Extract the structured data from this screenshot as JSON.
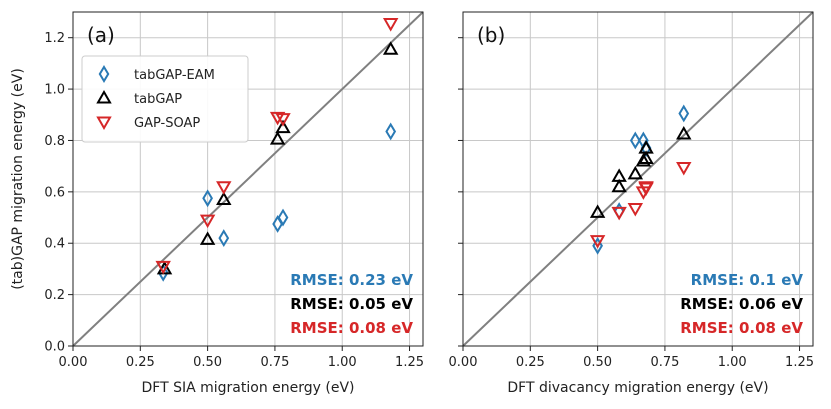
{
  "colors": {
    "tabgap_eam": "#2a7ab5",
    "tabgap": "#000000",
    "gap_soap": "#d62728",
    "grid": "#c8c8c8",
    "diag": "#808080"
  },
  "legend": {
    "entries": [
      "tabGAP-EAM",
      "tabGAP",
      "GAP-SOAP"
    ]
  },
  "chart_data": [
    {
      "type": "scatter",
      "panel_label": "(a)",
      "xlabel": "DFT SIA migration energy (eV)",
      "ylabel": "(tab)GAP migration energy (eV)",
      "xlim": [
        0,
        1.3
      ],
      "ylim": [
        0,
        1.3
      ],
      "xticks": [
        0,
        0.25,
        0.5,
        0.75,
        1.0,
        1.25
      ],
      "xtick_labels": [
        "0.00",
        "0.25",
        "0.50",
        "0.75",
        "1.00",
        "1.25"
      ],
      "yticks": [
        0,
        0.2,
        0.4,
        0.6,
        0.8,
        1.0,
        1.2
      ],
      "ytick_labels": [
        "0.0",
        "0.2",
        "0.4",
        "0.6",
        "0.8",
        "1.0",
        "1.2"
      ],
      "grid": true,
      "legend": "upper-left",
      "series": [
        {
          "name": "tabGAP-EAM",
          "marker": "diamond",
          "x": [
            0.335,
            0.5,
            0.56,
            0.76,
            0.78,
            1.18
          ],
          "y": [
            0.285,
            0.575,
            0.42,
            0.475,
            0.5,
            0.835
          ]
        },
        {
          "name": "tabGAP",
          "marker": "triangle-up",
          "x": [
            0.34,
            0.5,
            0.56,
            0.76,
            0.78,
            1.18
          ],
          "y": [
            0.3,
            0.415,
            0.57,
            0.805,
            0.85,
            1.155
          ]
        },
        {
          "name": "GAP-SOAP",
          "marker": "triangle-down",
          "x": [
            0.335,
            0.5,
            0.56,
            0.76,
            0.78,
            1.18
          ],
          "y": [
            0.31,
            0.49,
            0.62,
            0.89,
            0.885,
            1.255
          ]
        }
      ],
      "rmse": [
        "RMSE: 0.23 eV",
        "RMSE: 0.05 eV",
        "RMSE: 0.08 eV"
      ]
    },
    {
      "type": "scatter",
      "panel_label": "(b)",
      "xlabel": "DFT divacancy migration energy (eV)",
      "ylabel": "",
      "xlim": [
        0,
        1.3
      ],
      "ylim": [
        0,
        1.3
      ],
      "xticks": [
        0,
        0.25,
        0.5,
        0.75,
        1.0,
        1.25
      ],
      "xtick_labels": [
        "0.00",
        "0.25",
        "0.50",
        "0.75",
        "1.00",
        "1.25"
      ],
      "yticks": [
        0,
        0.2,
        0.4,
        0.6,
        0.8,
        1.0,
        1.2
      ],
      "ytick_labels": [],
      "grid": true,
      "legend": "none",
      "series": [
        {
          "name": "tabGAP-EAM",
          "marker": "diamond",
          "x": [
            0.5,
            0.58,
            0.64,
            0.67,
            0.68,
            0.82
          ],
          "y": [
            0.39,
            0.525,
            0.8,
            0.8,
            0.77,
            0.905
          ]
        },
        {
          "name": "tabGAP",
          "marker": "triangle-up",
          "x": [
            0.5,
            0.58,
            0.58,
            0.64,
            0.67,
            0.68,
            0.68,
            0.82
          ],
          "y": [
            0.52,
            0.62,
            0.66,
            0.67,
            0.72,
            0.73,
            0.77,
            0.825
          ]
        },
        {
          "name": "GAP-SOAP",
          "marker": "triangle-down",
          "x": [
            0.5,
            0.58,
            0.64,
            0.67,
            0.68,
            0.68,
            0.82
          ],
          "y": [
            0.41,
            0.52,
            0.535,
            0.6,
            0.62,
            0.615,
            0.695
          ]
        }
      ],
      "rmse": [
        "RMSE: 0.1 eV",
        "RMSE: 0.06 eV",
        "RMSE: 0.08 eV"
      ]
    }
  ]
}
